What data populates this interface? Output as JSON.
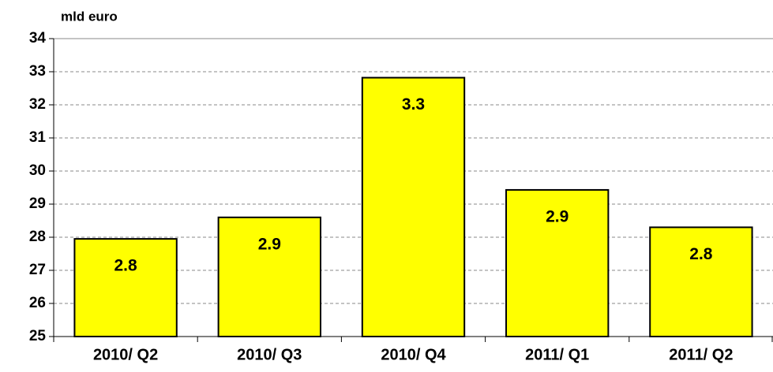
{
  "chart_data": {
    "type": "bar",
    "y_axis_label": "mld euro",
    "categories": [
      "2010/ Q2",
      "2010/ Q3",
      "2010/ Q4",
      "2011/ Q1",
      "2011/ Q2"
    ],
    "values": [
      27.95,
      28.6,
      32.82,
      29.43,
      28.3
    ],
    "bar_labels": [
      2.8,
      2.9,
      3.3,
      2.9,
      2.8
    ],
    "color": "#ffff00",
    "ylim": [
      25,
      34
    ],
    "yticks": [
      25,
      26,
      27,
      28,
      29,
      30,
      31,
      32,
      33,
      34
    ],
    "grid": true
  }
}
